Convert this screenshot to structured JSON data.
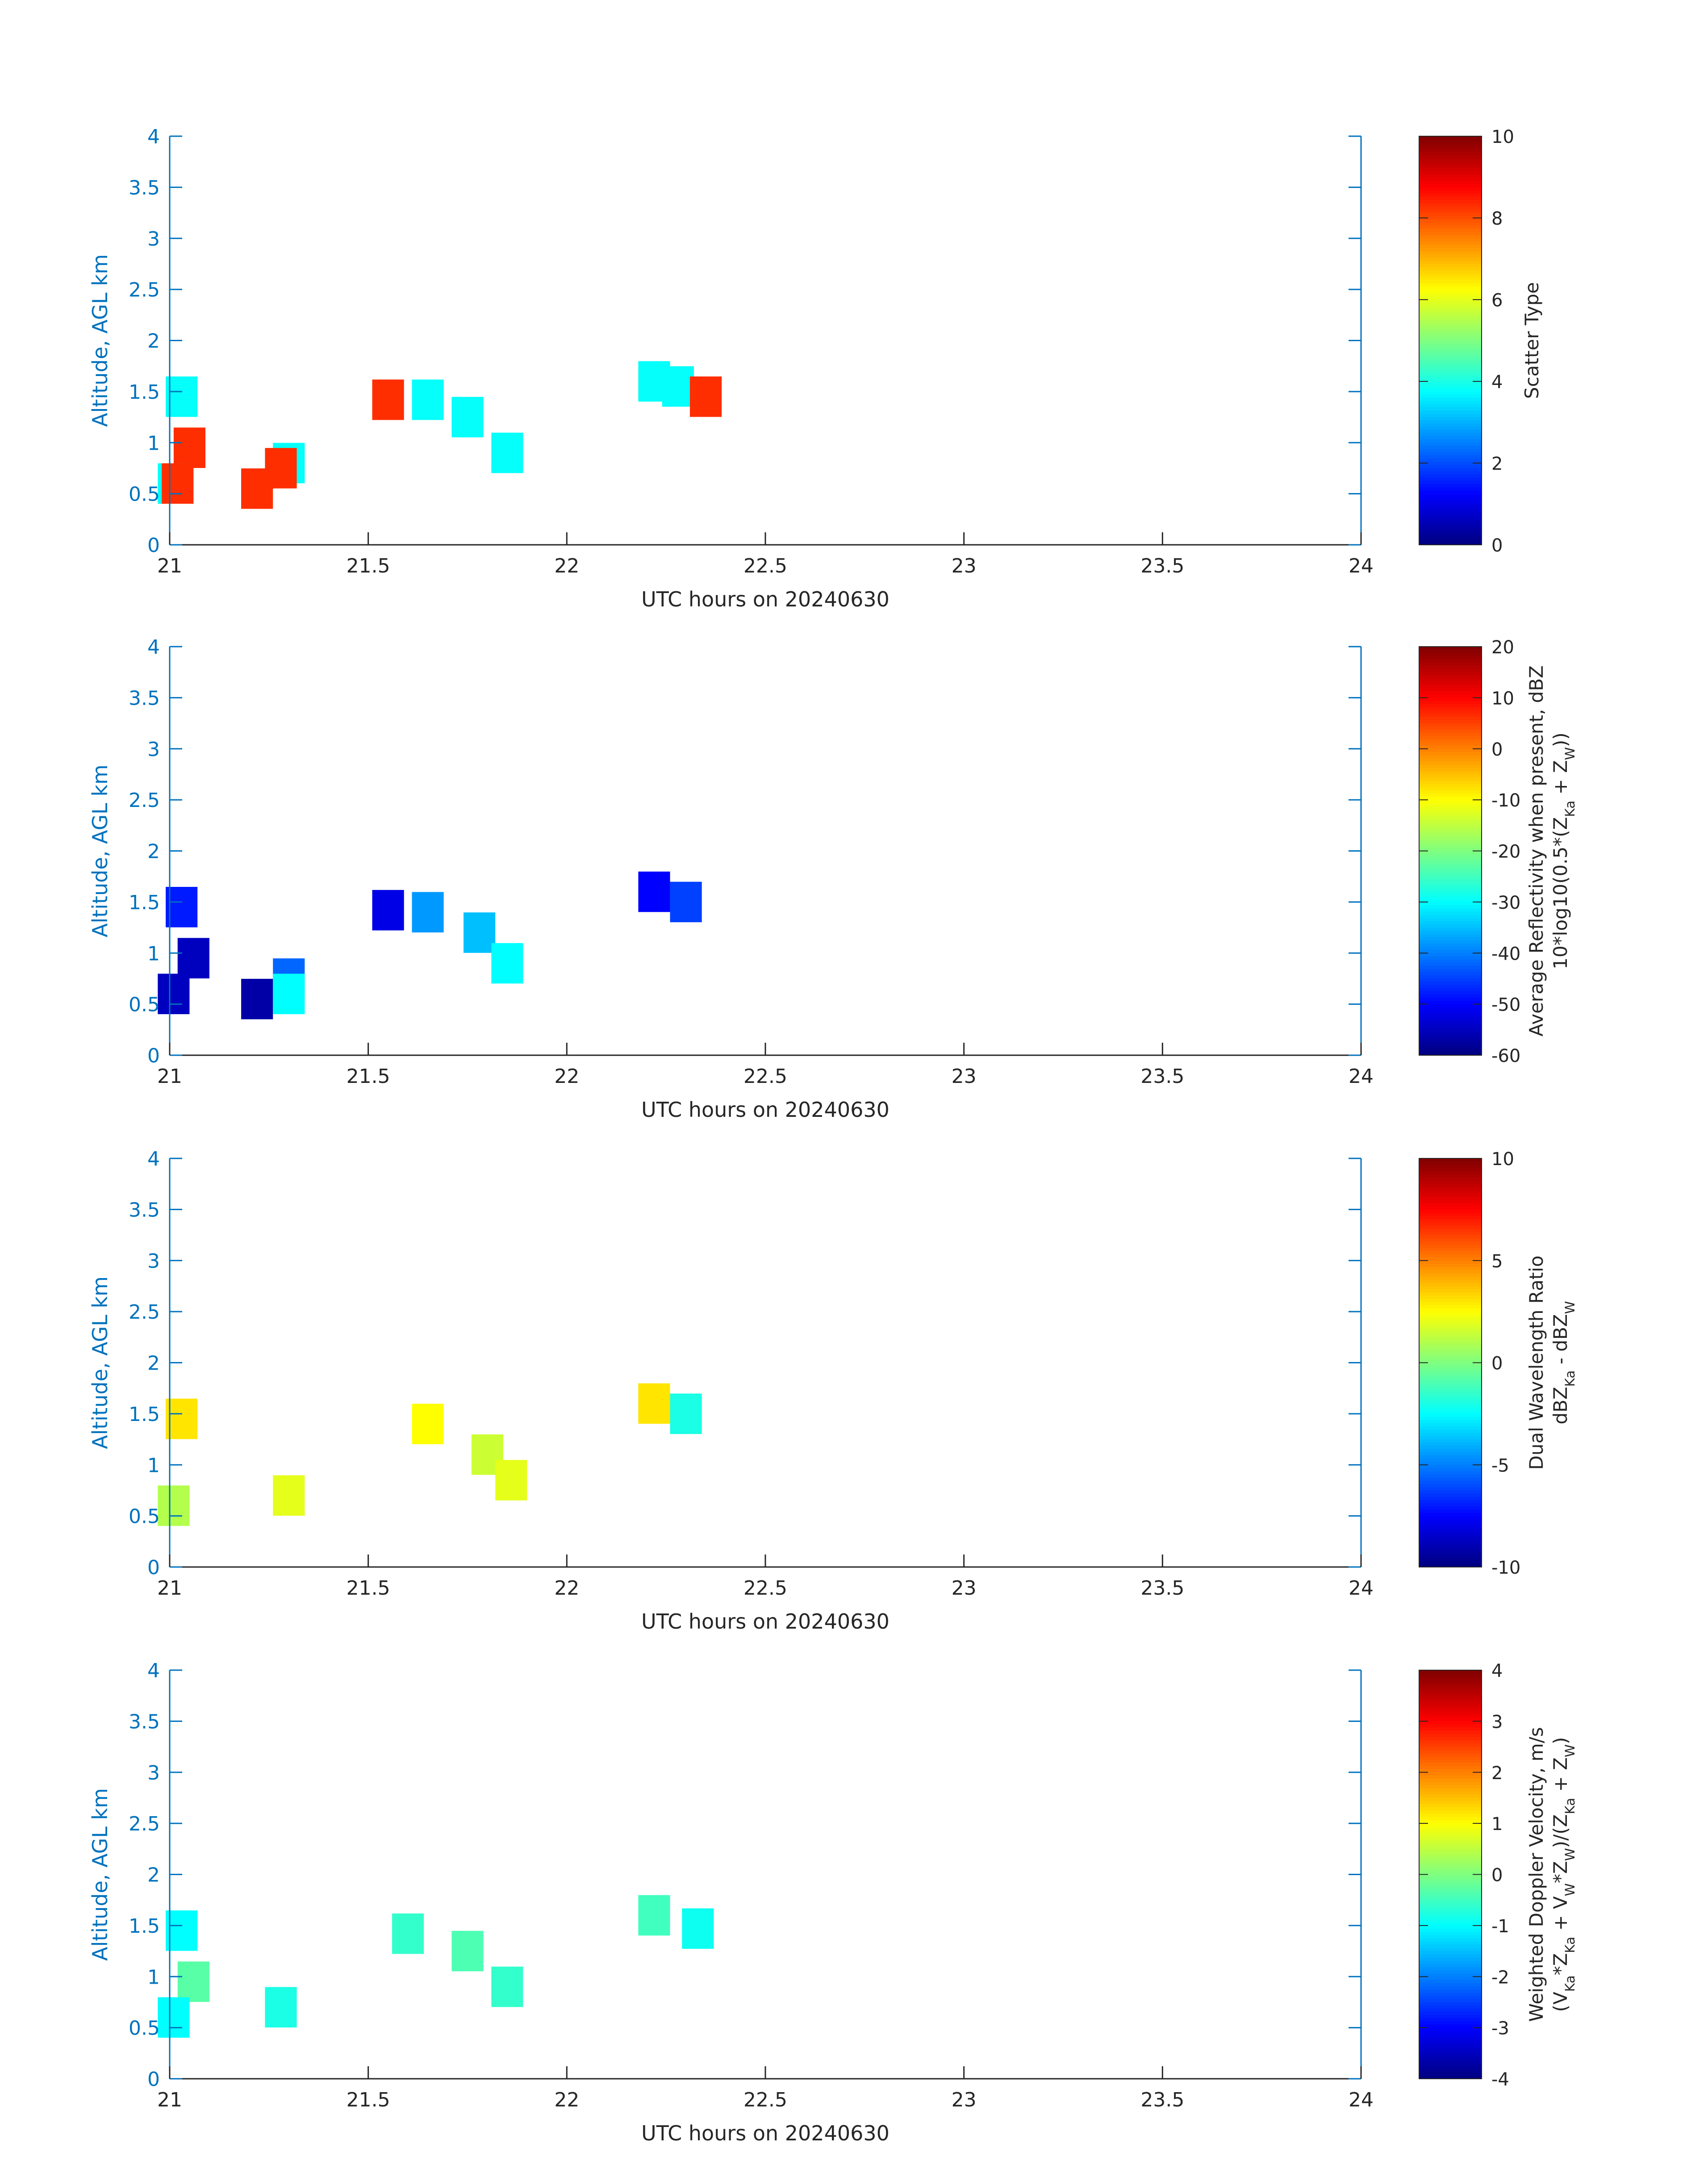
{
  "chart_data": [
    {
      "type": "heatmap",
      "xlabel": "UTC hours on 20240630",
      "ylabel": "Altitude, AGL km",
      "xlim": [
        21,
        24
      ],
      "ylim": [
        0,
        4
      ],
      "xticks": [
        "21",
        "21.5",
        "22",
        "22.5",
        "23",
        "23.5",
        "24"
      ],
      "yticks": [
        "0",
        "0.5",
        "1",
        "1.5",
        "2",
        "2.5",
        "3",
        "3.5",
        "4"
      ],
      "colorbar": {
        "label_lines": [
          "Scatter Type"
        ],
        "clim": [
          0,
          10
        ],
        "ticks": [
          "0",
          "2",
          "4",
          "6",
          "8",
          "10"
        ]
      },
      "blobs": [
        {
          "x": 21.03,
          "y": 1.45,
          "value": 3.8
        },
        {
          "x": 21.05,
          "y": 0.95,
          "value": 8.3
        },
        {
          "x": 21.01,
          "y": 0.6,
          "value": 3.8
        },
        {
          "x": 21.02,
          "y": 0.6,
          "value": 8.3
        },
        {
          "x": 21.22,
          "y": 0.55,
          "value": 8.3
        },
        {
          "x": 21.3,
          "y": 0.8,
          "value": 3.8
        },
        {
          "x": 21.28,
          "y": 0.75,
          "value": 8.3
        },
        {
          "x": 21.55,
          "y": 1.42,
          "value": 8.3
        },
        {
          "x": 21.65,
          "y": 1.42,
          "value": 3.8
        },
        {
          "x": 21.75,
          "y": 1.25,
          "value": 3.8
        },
        {
          "x": 21.85,
          "y": 0.9,
          "value": 3.8
        },
        {
          "x": 22.22,
          "y": 1.6,
          "value": 3.8
        },
        {
          "x": 22.28,
          "y": 1.55,
          "value": 3.8
        },
        {
          "x": 22.35,
          "y": 1.45,
          "value": 8.3
        }
      ]
    },
    {
      "type": "heatmap",
      "xlabel": "UTC hours on 20240630",
      "ylabel": "Altitude, AGL km",
      "xlim": [
        21,
        24
      ],
      "ylim": [
        0,
        4
      ],
      "xticks": [
        "21",
        "21.5",
        "22",
        "22.5",
        "23",
        "23.5",
        "24"
      ],
      "yticks": [
        "0",
        "0.5",
        "1",
        "1.5",
        "2",
        "2.5",
        "3",
        "3.5",
        "4"
      ],
      "colorbar": {
        "label_lines": [
          "Average Reflectivity when present, dBZ",
          "10*log10(0.5*(Z_Ka + Z_W))"
        ],
        "clim": [
          -60,
          20
        ],
        "ticks": [
          "-60",
          "-50",
          "-40",
          "-30",
          "-20",
          "-10",
          "0",
          "10",
          "20"
        ]
      },
      "blobs": [
        {
          "x": 21.03,
          "y": 1.45,
          "value": -48
        },
        {
          "x": 21.06,
          "y": 0.95,
          "value": -55
        },
        {
          "x": 21.01,
          "y": 0.6,
          "value": -55
        },
        {
          "x": 21.22,
          "y": 0.55,
          "value": -57
        },
        {
          "x": 21.3,
          "y": 0.75,
          "value": -42
        },
        {
          "x": 21.3,
          "y": 0.6,
          "value": -30
        },
        {
          "x": 21.55,
          "y": 1.42,
          "value": -52
        },
        {
          "x": 21.65,
          "y": 1.4,
          "value": -38
        },
        {
          "x": 21.78,
          "y": 1.2,
          "value": -35
        },
        {
          "x": 21.85,
          "y": 0.9,
          "value": -30
        },
        {
          "x": 22.22,
          "y": 1.6,
          "value": -50
        },
        {
          "x": 22.3,
          "y": 1.5,
          "value": -45
        }
      ]
    },
    {
      "type": "heatmap",
      "xlabel": "UTC hours on 20240630",
      "ylabel": "Altitude, AGL km",
      "xlim": [
        21,
        24
      ],
      "ylim": [
        0,
        4
      ],
      "xticks": [
        "21",
        "21.5",
        "22",
        "22.5",
        "23",
        "23.5",
        "24"
      ],
      "yticks": [
        "0",
        "0.5",
        "1",
        "1.5",
        "2",
        "2.5",
        "3",
        "3.5",
        "4"
      ],
      "colorbar": {
        "label_lines": [
          "Dual Wavelength Ratio",
          "dBZ_Ka - dBZ_W"
        ],
        "clim": [
          -10,
          10
        ],
        "ticks": [
          "-10",
          "-5",
          "0",
          "5",
          "10"
        ]
      },
      "blobs": [
        {
          "x": 21.03,
          "y": 1.45,
          "value": 3
        },
        {
          "x": 21.01,
          "y": 0.6,
          "value": 1
        },
        {
          "x": 21.3,
          "y": 0.7,
          "value": 2
        },
        {
          "x": 21.65,
          "y": 1.4,
          "value": 2.5
        },
        {
          "x": 21.8,
          "y": 1.1,
          "value": 1.5
        },
        {
          "x": 21.86,
          "y": 0.85,
          "value": 2
        },
        {
          "x": 22.22,
          "y": 1.6,
          "value": 3
        },
        {
          "x": 22.3,
          "y": 1.5,
          "value": -2
        }
      ]
    },
    {
      "type": "heatmap",
      "xlabel": "UTC hours on 20240630",
      "ylabel": "Altitude, AGL km",
      "xlim": [
        21,
        24
      ],
      "ylim": [
        0,
        4
      ],
      "xticks": [
        "21",
        "21.5",
        "22",
        "22.5",
        "23",
        "23.5",
        "24"
      ],
      "yticks": [
        "0",
        "0.5",
        "1",
        "1.5",
        "2",
        "2.5",
        "3",
        "3.5",
        "4"
      ],
      "colorbar": {
        "label_lines": [
          "Weighted Doppler Velocity, m/s",
          "(V_Ka*Z_Ka + V_W*Z_W)/(Z_Ka + Z_W)"
        ],
        "clim": [
          -4,
          4
        ],
        "ticks": [
          "-4",
          "-3",
          "-2",
          "-1",
          "0",
          "1",
          "2",
          "3",
          "4"
        ]
      },
      "blobs": [
        {
          "x": 21.03,
          "y": 1.45,
          "value": -1
        },
        {
          "x": 21.06,
          "y": 0.95,
          "value": -0.3
        },
        {
          "x": 21.01,
          "y": 0.6,
          "value": -1
        },
        {
          "x": 21.28,
          "y": 0.7,
          "value": -0.8
        },
        {
          "x": 21.6,
          "y": 1.42,
          "value": -0.6
        },
        {
          "x": 21.75,
          "y": 1.25,
          "value": -0.4
        },
        {
          "x": 21.85,
          "y": 0.9,
          "value": -0.6
        },
        {
          "x": 22.22,
          "y": 1.6,
          "value": -0.5
        },
        {
          "x": 22.33,
          "y": 1.47,
          "value": -0.9
        }
      ]
    }
  ]
}
